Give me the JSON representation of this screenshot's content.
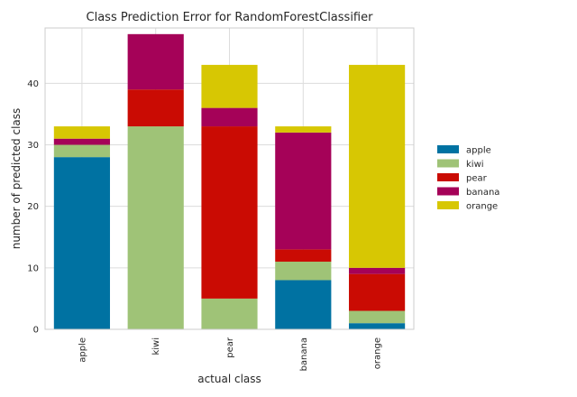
{
  "chart_data": {
    "type": "bar",
    "stacked": true,
    "title": "Class Prediction Error for RandomForestClassifier",
    "xlabel": "actual class",
    "ylabel": "number of predicted class",
    "categories": [
      "apple",
      "kiwi",
      "pear",
      "banana",
      "orange"
    ],
    "ylim": [
      0,
      49
    ],
    "yticks": [
      0,
      10,
      20,
      30,
      40
    ],
    "grid": true,
    "legend_position": "right",
    "series": [
      {
        "name": "apple",
        "color": "#0072a2",
        "values": [
          28,
          0,
          0,
          8,
          1
        ]
      },
      {
        "name": "kiwi",
        "color": "#9fc377",
        "values": [
          2,
          33,
          5,
          3,
          2
        ]
      },
      {
        "name": "pear",
        "color": "#ca0b03",
        "values": [
          0,
          6,
          28,
          2,
          6
        ]
      },
      {
        "name": "banana",
        "color": "#a50258",
        "values": [
          1,
          9,
          3,
          19,
          1
        ]
      },
      {
        "name": "orange",
        "color": "#d7c703",
        "values": [
          2,
          0,
          7,
          1,
          33
        ]
      }
    ]
  }
}
